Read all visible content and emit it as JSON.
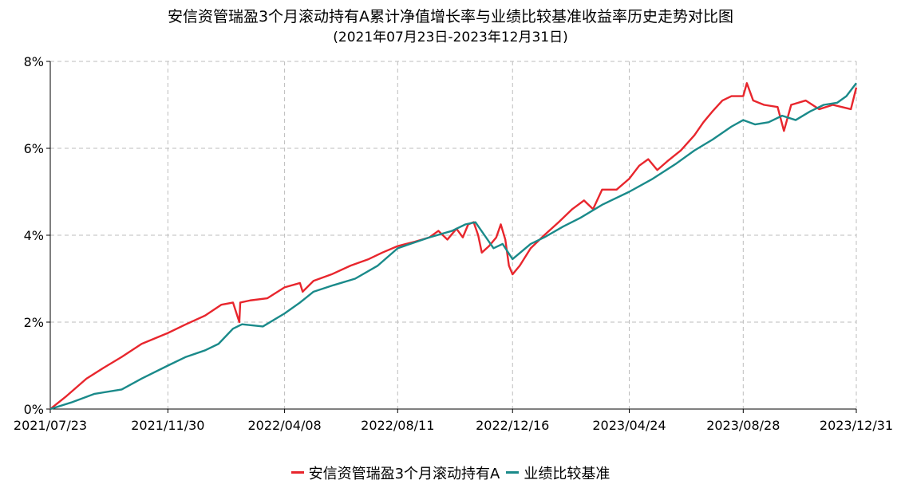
{
  "chart_data": {
    "type": "line",
    "title": "安信资管瑞盈3个月滚动持有A累计净值增长率与业绩比较基准收益率历史走势对比图",
    "subtitle": "(2021年07月23日-2023年12月31日)",
    "xlabel": "",
    "ylabel": "",
    "x_ticks": [
      "2021/07/23",
      "2021/11/30",
      "2022/04/08",
      "2022/08/11",
      "2022/12/16",
      "2023/04/24",
      "2023/08/28",
      "2023/12/31"
    ],
    "y_ticks": [
      "0%",
      "2%",
      "4%",
      "6%",
      "8%"
    ],
    "ylim": [
      0,
      8
    ],
    "y_unit": "%",
    "grid": true,
    "legend_position": "bottom",
    "series": [
      {
        "name": "安信资管瑞盈3个月滚动持有A",
        "color": "#e8262d",
        "points": [
          [
            "2021-07-23",
            0.0
          ],
          [
            "2021-08-10",
            0.3
          ],
          [
            "2021-09-01",
            0.7
          ],
          [
            "2021-09-20",
            0.95
          ],
          [
            "2021-10-10",
            1.2
          ],
          [
            "2021-11-01",
            1.5
          ],
          [
            "2021-11-30",
            1.75
          ],
          [
            "2021-12-20",
            1.95
          ],
          [
            "2022-01-10",
            2.15
          ],
          [
            "2022-01-28",
            2.4
          ],
          [
            "2022-02-10",
            2.45
          ],
          [
            "2022-02-17",
            2.0
          ],
          [
            "2022-02-18",
            2.45
          ],
          [
            "2022-03-01",
            2.5
          ],
          [
            "2022-03-20",
            2.55
          ],
          [
            "2022-04-08",
            2.8
          ],
          [
            "2022-04-25",
            2.9
          ],
          [
            "2022-04-28",
            2.7
          ],
          [
            "2022-05-10",
            2.95
          ],
          [
            "2022-05-30",
            3.1
          ],
          [
            "2022-06-20",
            3.3
          ],
          [
            "2022-07-10",
            3.45
          ],
          [
            "2022-07-25",
            3.6
          ],
          [
            "2022-08-11",
            3.75
          ],
          [
            "2022-08-30",
            3.85
          ],
          [
            "2022-09-15",
            3.95
          ],
          [
            "2022-09-25",
            4.1
          ],
          [
            "2022-10-05",
            3.9
          ],
          [
            "2022-10-15",
            4.15
          ],
          [
            "2022-10-22",
            3.95
          ],
          [
            "2022-10-28",
            4.25
          ],
          [
            "2022-11-03",
            4.3
          ],
          [
            "2022-11-08",
            4.0
          ],
          [
            "2022-11-12",
            3.6
          ],
          [
            "2022-11-20",
            3.75
          ],
          [
            "2022-11-28",
            3.95
          ],
          [
            "2022-12-03",
            4.25
          ],
          [
            "2022-12-08",
            3.9
          ],
          [
            "2022-12-12",
            3.3
          ],
          [
            "2022-12-16",
            3.1
          ],
          [
            "2022-12-24",
            3.3
          ],
          [
            "2023-01-05",
            3.7
          ],
          [
            "2023-01-20",
            4.0
          ],
          [
            "2023-02-05",
            4.3
          ],
          [
            "2023-02-20",
            4.6
          ],
          [
            "2023-03-05",
            4.8
          ],
          [
            "2023-03-15",
            4.6
          ],
          [
            "2023-03-25",
            5.05
          ],
          [
            "2023-04-10",
            5.05
          ],
          [
            "2023-04-24",
            5.3
          ],
          [
            "2023-05-05",
            5.6
          ],
          [
            "2023-05-15",
            5.75
          ],
          [
            "2023-05-25",
            5.5
          ],
          [
            "2023-06-05",
            5.7
          ],
          [
            "2023-06-20",
            5.95
          ],
          [
            "2023-07-05",
            6.3
          ],
          [
            "2023-07-15",
            6.6
          ],
          [
            "2023-07-25",
            6.85
          ],
          [
            "2023-08-05",
            7.1
          ],
          [
            "2023-08-15",
            7.2
          ],
          [
            "2023-08-28",
            7.2
          ],
          [
            "2023-09-01",
            7.5
          ],
          [
            "2023-09-08",
            7.1
          ],
          [
            "2023-09-20",
            7.0
          ],
          [
            "2023-10-05",
            6.95
          ],
          [
            "2023-10-12",
            6.4
          ],
          [
            "2023-10-20",
            7.0
          ],
          [
            "2023-11-05",
            7.1
          ],
          [
            "2023-11-20",
            6.9
          ],
          [
            "2023-12-05",
            7.0
          ],
          [
            "2023-12-15",
            6.95
          ],
          [
            "2023-12-25",
            6.9
          ],
          [
            "2023-12-31",
            7.4
          ]
        ]
      },
      {
        "name": "业绩比较基准",
        "color": "#1a8a8a",
        "points": [
          [
            "2021-07-23",
            0.0
          ],
          [
            "2021-08-15",
            0.15
          ],
          [
            "2021-09-10",
            0.35
          ],
          [
            "2021-10-10",
            0.45
          ],
          [
            "2021-11-01",
            0.7
          ],
          [
            "2021-11-30",
            1.0
          ],
          [
            "2021-12-20",
            1.2
          ],
          [
            "2022-01-10",
            1.35
          ],
          [
            "2022-01-25",
            1.5
          ],
          [
            "2022-02-10",
            1.85
          ],
          [
            "2022-02-20",
            1.95
          ],
          [
            "2022-03-15",
            1.9
          ],
          [
            "2022-04-08",
            2.2
          ],
          [
            "2022-04-25",
            2.45
          ],
          [
            "2022-05-10",
            2.7
          ],
          [
            "2022-06-01",
            2.85
          ],
          [
            "2022-06-25",
            3.0
          ],
          [
            "2022-07-20",
            3.3
          ],
          [
            "2022-08-11",
            3.7
          ],
          [
            "2022-08-25",
            3.8
          ],
          [
            "2022-09-15",
            3.95
          ],
          [
            "2022-10-10",
            4.1
          ],
          [
            "2022-10-25",
            4.25
          ],
          [
            "2022-11-05",
            4.3
          ],
          [
            "2022-11-15",
            4.0
          ],
          [
            "2022-11-25",
            3.7
          ],
          [
            "2022-12-05",
            3.8
          ],
          [
            "2022-12-16",
            3.45
          ],
          [
            "2023-01-05",
            3.8
          ],
          [
            "2023-01-20",
            3.95
          ],
          [
            "2023-02-10",
            4.2
          ],
          [
            "2023-03-01",
            4.4
          ],
          [
            "2023-03-25",
            4.7
          ],
          [
            "2023-04-24",
            5.0
          ],
          [
            "2023-05-20",
            5.3
          ],
          [
            "2023-06-15",
            5.65
          ],
          [
            "2023-07-05",
            5.95
          ],
          [
            "2023-07-25",
            6.2
          ],
          [
            "2023-08-15",
            6.5
          ],
          [
            "2023-08-28",
            6.65
          ],
          [
            "2023-09-10",
            6.55
          ],
          [
            "2023-09-25",
            6.6
          ],
          [
            "2023-10-10",
            6.75
          ],
          [
            "2023-10-25",
            6.65
          ],
          [
            "2023-11-10",
            6.85
          ],
          [
            "2023-11-25",
            7.0
          ],
          [
            "2023-12-10",
            7.05
          ],
          [
            "2023-12-20",
            7.2
          ],
          [
            "2023-12-31",
            7.5
          ]
        ]
      }
    ]
  }
}
